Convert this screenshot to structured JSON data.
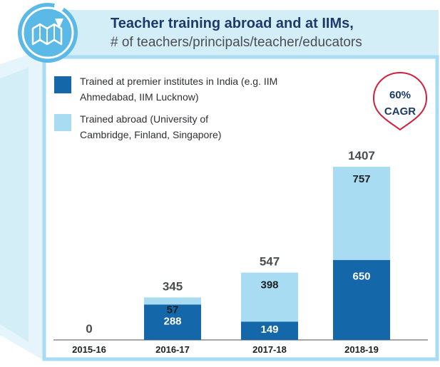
{
  "header": {
    "title": "Teacher training abroad and at IIMs,",
    "subtitle": "# of teachers/principals/teacher/educators",
    "icon": "map-icon"
  },
  "legend": [
    {
      "label": "Trained at premier institutes in India (e.g. IIM Ahmedabad, IIM Lucknow)",
      "color": "#1467a8"
    },
    {
      "label": "Trained abroad (University of Cambridge, Finland, Singapore)",
      "color": "#a8dcf2"
    }
  ],
  "callout": {
    "line1": "60%",
    "line2": "CAGR",
    "color": "#d21f3c"
  },
  "colors": {
    "frame": "#a8dcf2",
    "india": "#1467a8",
    "abroad": "#a8dcf2",
    "title": "#1b3a6b"
  },
  "chart_data": {
    "type": "bar",
    "stacked": true,
    "categories": [
      "2015-16",
      "2016-17",
      "2017-18",
      "2018-19"
    ],
    "series": [
      {
        "name": "Trained at premier institutes in India (e.g. IIM Ahmedabad, IIM Lucknow)",
        "values": [
          0,
          288,
          149,
          650
        ],
        "color": "#1467a8"
      },
      {
        "name": "Trained abroad (University of Cambridge, Finland, Singapore)",
        "values": [
          0,
          57,
          398,
          757
        ],
        "color": "#a8dcf2"
      }
    ],
    "totals": [
      0,
      345,
      547,
      1407
    ],
    "title": "Teacher training abroad and at IIMs,",
    "subtitle": "# of teachers/principals/teacher/educators",
    "annotation": "60% CAGR",
    "xlabel": "",
    "ylabel": "",
    "ylim": [
      0,
      1407
    ],
    "grid": false,
    "legend_position": "top-left"
  }
}
